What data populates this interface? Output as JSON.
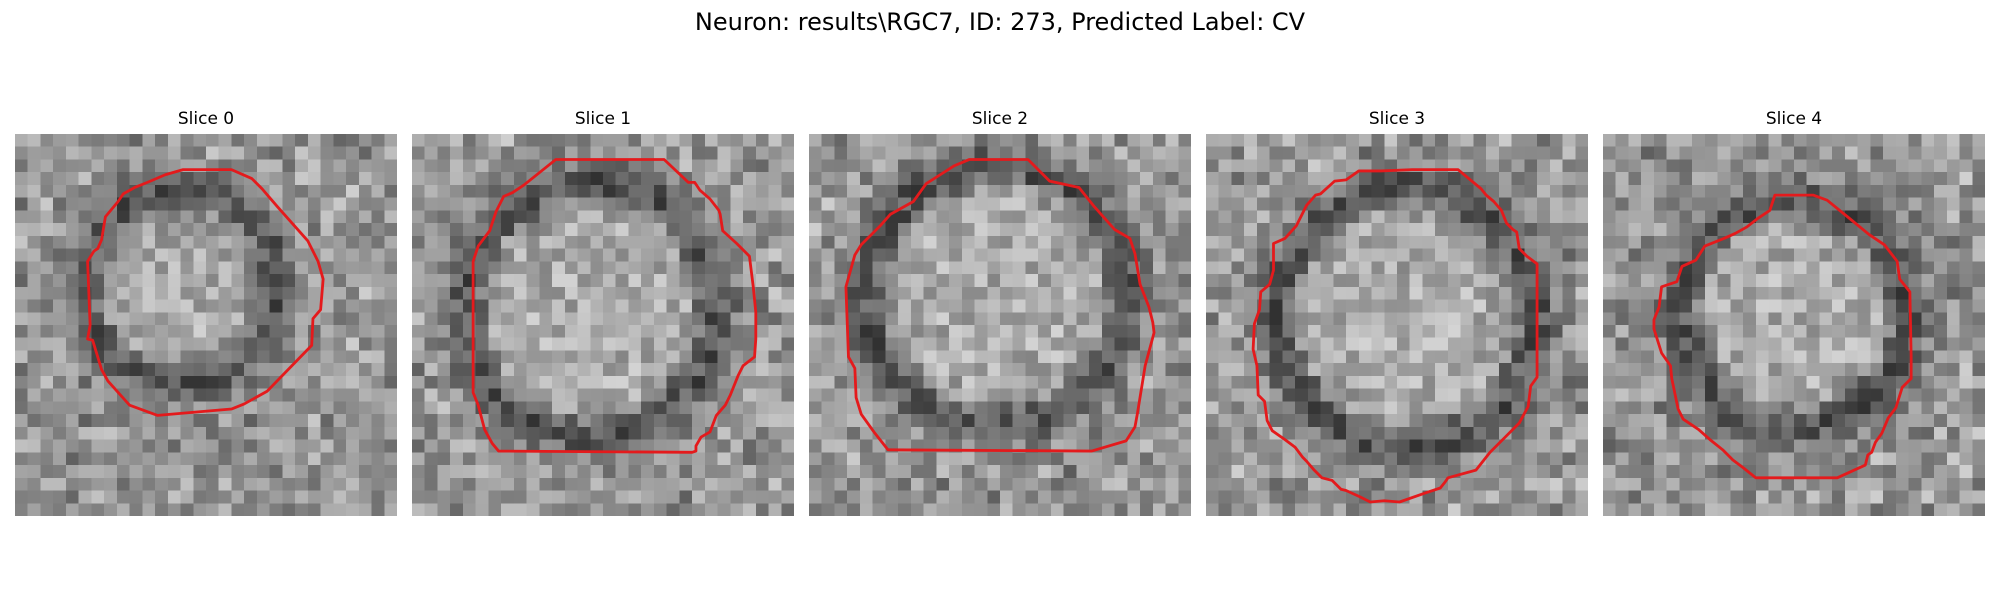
{
  "figure": {
    "title": "Neuron: results\\RGC7, ID: 273, Predicted Label: CV"
  },
  "outline_color": "#e41a1c",
  "panels": [
    {
      "title": "Slice 0"
    },
    {
      "title": "Slice 1"
    },
    {
      "title": "Slice 2"
    },
    {
      "title": "Slice 3"
    },
    {
      "title": "Slice 4"
    }
  ]
}
